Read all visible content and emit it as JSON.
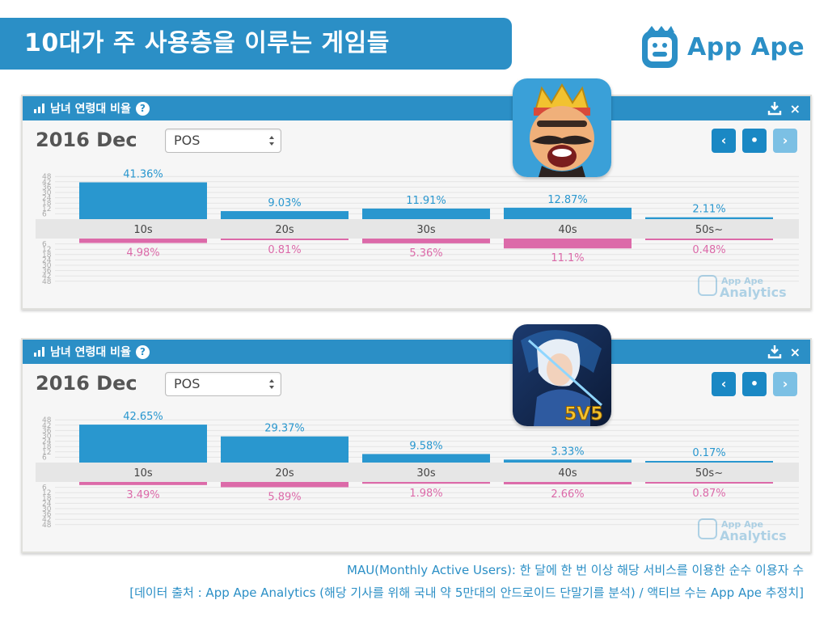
{
  "page_title": "10대가 주 사용층을 이루는 게임들",
  "brand": {
    "name": "App Ape"
  },
  "panels": [
    {
      "header_title": "남녀 연령대 비율",
      "help_label": "?",
      "close_label": "×",
      "date": "2016 Dec",
      "select_value": "POS",
      "nav": {
        "prev": "‹",
        "dot": "•",
        "next": "›"
      },
      "watermark": {
        "line1": "App Ape",
        "line2": "Analytics"
      }
    },
    {
      "header_title": "남녀 연령대 비율",
      "help_label": "?",
      "close_label": "×",
      "date": "2016 Dec",
      "select_value": "POS",
      "nav": {
        "prev": "‹",
        "dot": "•",
        "next": "›"
      },
      "watermark": {
        "line1": "App Ape",
        "line2": "Analytics"
      }
    }
  ],
  "colors": {
    "male": "#2997cf",
    "female": "#dc6aa9",
    "header": "#2b8fc6",
    "band": "#e6e6e6"
  },
  "chart_data": [
    {
      "type": "bar",
      "categories": [
        "10s",
        "20s",
        "30s",
        "40s",
        "50s~"
      ],
      "axis_ticks": [
        "48",
        "42",
        "36",
        "30",
        "24",
        "18",
        "12",
        "6"
      ],
      "ylim": [
        0,
        48
      ],
      "series": [
        {
          "values": [
            41.36,
            9.03,
            11.91,
            12.87,
            2.11
          ],
          "labels": [
            "41.36%",
            "9.03%",
            "11.91%",
            "12.87%",
            "2.11%"
          ]
        },
        {
          "values": [
            4.98,
            0.81,
            5.36,
            11.1,
            0.48
          ],
          "labels": [
            "4.98%",
            "0.81%",
            "5.36%",
            "11.1%",
            "0.48%"
          ]
        }
      ]
    },
    {
      "type": "bar",
      "categories": [
        "10s",
        "20s",
        "30s",
        "40s",
        "50s~"
      ],
      "axis_ticks": [
        "48",
        "42",
        "36",
        "30",
        "24",
        "18",
        "12",
        "6"
      ],
      "ylim": [
        0,
        48
      ],
      "series": [
        {
          "values": [
            42.65,
            29.37,
            9.58,
            3.33,
            0.17
          ],
          "labels": [
            "42.65%",
            "29.37%",
            "9.58%",
            "3.33%",
            "0.17%"
          ]
        },
        {
          "values": [
            3.49,
            5.89,
            1.98,
            2.66,
            0.87
          ],
          "labels": [
            "3.49%",
            "5.89%",
            "1.98%",
            "2.66%",
            "0.87%"
          ]
        }
      ]
    }
  ],
  "footnotes": {
    "line1": "MAU(Monthly Active Users): 한 달에 한 번 이상 해당 서비스를 이용한 순수 이용자 수",
    "line2": "[데이터 출처 : App Ape Analytics (해당 기사를 위해 국내 약 5만대의 안드로이드 단말기를 분석) / 액티브 수는 App Ape 추정치]"
  }
}
